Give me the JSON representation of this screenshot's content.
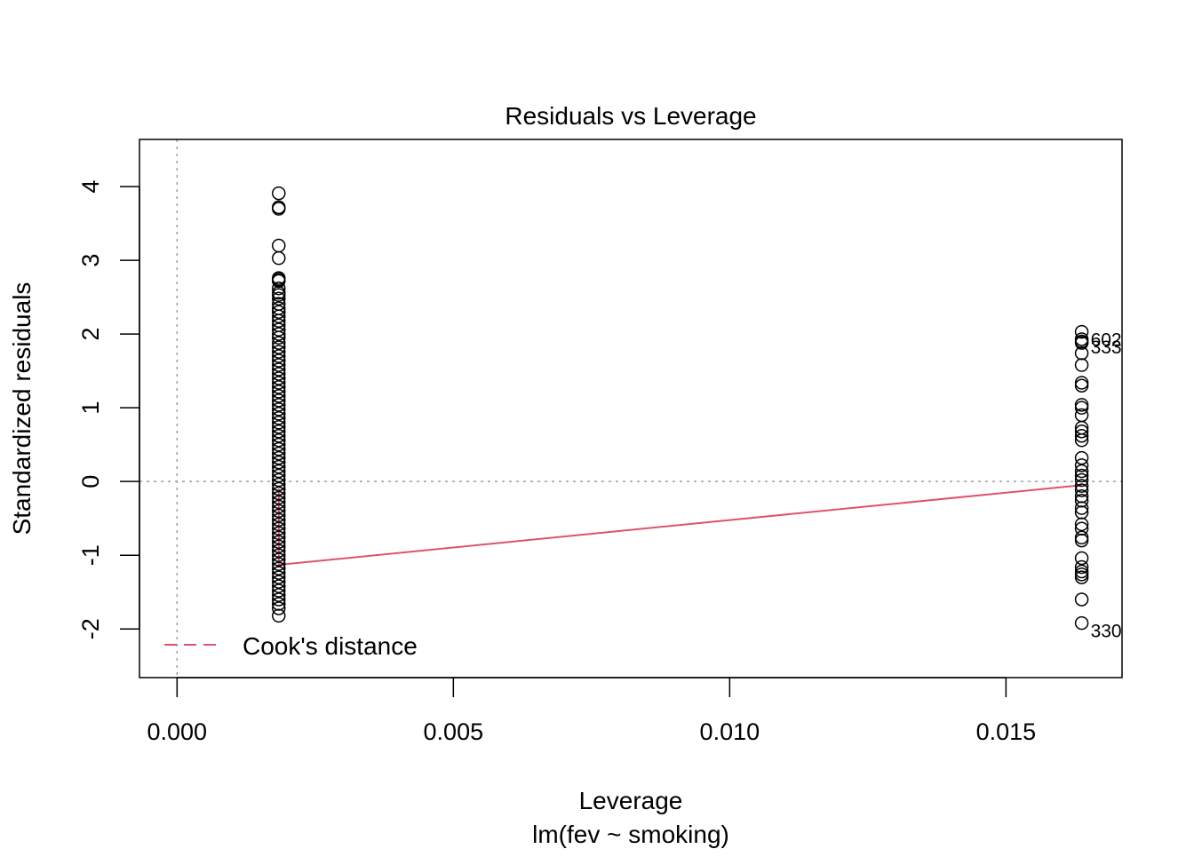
{
  "chart_data": {
    "type": "scatter",
    "title": "Residuals vs Leverage",
    "xlabel": "Leverage",
    "subtitle": "lm(fev ~ smoking)",
    "ylabel": "Standardized residuals",
    "xlim": [
      -0.00068,
      0.0171
    ],
    "ylim": [
      -2.66,
      4.64
    ],
    "xticks": [
      0.0,
      0.005,
      0.01,
      0.015
    ],
    "xtick_labels": [
      "0.000",
      "0.005",
      "0.010",
      "0.015"
    ],
    "yticks": [
      -2,
      -1,
      0,
      1,
      2,
      3,
      4
    ],
    "ytick_labels": [
      "-2",
      "-1",
      "0",
      "1",
      "2",
      "3",
      "4"
    ],
    "reference_lines": {
      "x": 0,
      "y": 0,
      "style": "dotted",
      "color": "#9e9e9e"
    },
    "legend": {
      "position": "bottom-left",
      "entries": [
        {
          "label": "Cook's distance",
          "style": "dashed",
          "color": "#df536b"
        }
      ]
    },
    "series": [
      {
        "x": 0.00184,
        "y": [
          3.91,
          3.72,
          3.7,
          3.2,
          3.03,
          2.76,
          2.74,
          2.72,
          2.62,
          2.56,
          2.53,
          2.48,
          2.41,
          2.35,
          2.3,
          2.24,
          2.18,
          2.12,
          2.06,
          2.0,
          1.95,
          1.88,
          1.82,
          1.76,
          1.7,
          1.64,
          1.58,
          1.52,
          1.46,
          1.4,
          1.34,
          1.28,
          1.22,
          1.16,
          1.1,
          1.04,
          0.98,
          0.92,
          0.86,
          0.8,
          0.74,
          0.68,
          0.62,
          0.56,
          0.5,
          0.44,
          0.38,
          0.32,
          0.26,
          0.2,
          0.14,
          0.08,
          0.02,
          -0.04,
          -0.1,
          -0.16,
          -0.22,
          -0.28,
          -0.34,
          -0.4,
          -0.46,
          -0.52,
          -0.58,
          -0.64,
          -0.7,
          -0.76,
          -0.82,
          -0.88,
          -0.94,
          -1.0,
          -1.06,
          -1.12,
          -1.18,
          -1.24,
          -1.3,
          -1.36,
          -1.42,
          -1.48,
          -1.54,
          -1.6,
          -1.66,
          -1.72,
          -1.82
        ],
        "color": "#000000"
      },
      {
        "x": 0.01637,
        "y": [
          2.03,
          1.93,
          1.9,
          1.88,
          1.74,
          1.58,
          1.34,
          1.3,
          1.04,
          1.0,
          0.9,
          0.73,
          0.68,
          0.62,
          0.56,
          0.32,
          0.22,
          0.14,
          0.08,
          0.02,
          -0.06,
          -0.12,
          -0.2,
          -0.26,
          -0.36,
          -0.42,
          -0.58,
          -0.64,
          -0.76,
          -0.8,
          -1.04,
          -1.16,
          -1.22,
          -1.26,
          -1.3,
          -1.6,
          -1.92
        ],
        "color": "#000000"
      }
    ],
    "point_labels": [
      {
        "text": "602",
        "x": 0.01637,
        "y": 2.03
      },
      {
        "text": "333",
        "x": 0.01637,
        "y": 1.93
      },
      {
        "text": "330",
        "x": 0.01637,
        "y": -1.92
      }
    ],
    "cooks_line": {
      "color": "#df536b",
      "points": [
        [
          0.00184,
          -0.1
        ],
        [
          0.00184,
          -1.13
        ],
        [
          0.01637,
          -0.05
        ]
      ]
    }
  }
}
